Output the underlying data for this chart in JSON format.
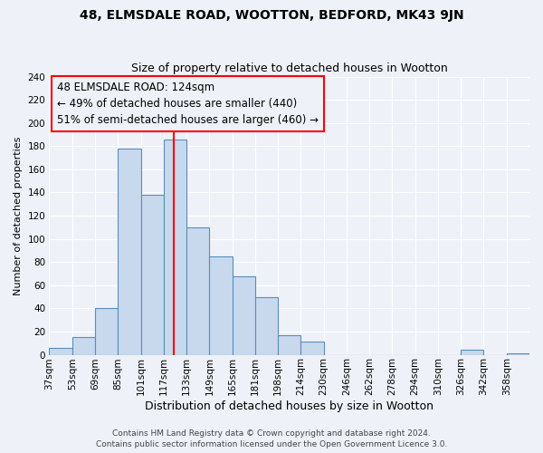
{
  "title": "48, ELMSDALE ROAD, WOOTTON, BEDFORD, MK43 9JN",
  "subtitle": "Size of property relative to detached houses in Wootton",
  "xlabel": "Distribution of detached houses by size in Wootton",
  "ylabel": "Number of detached properties",
  "bin_labels": [
    "37sqm",
    "53sqm",
    "69sqm",
    "85sqm",
    "101sqm",
    "117sqm",
    "133sqm",
    "149sqm",
    "165sqm",
    "181sqm",
    "198sqm",
    "214sqm",
    "230sqm",
    "246sqm",
    "262sqm",
    "278sqm",
    "294sqm",
    "310sqm",
    "326sqm",
    "342sqm",
    "358sqm"
  ],
  "bar_heights": [
    6,
    15,
    40,
    178,
    138,
    186,
    110,
    85,
    68,
    50,
    17,
    11,
    0,
    0,
    0,
    0,
    0,
    0,
    4,
    0,
    1
  ],
  "bar_color": "#c9d9ed",
  "bar_edge_color": "#5b8db8",
  "vline_color": "red",
  "annotation_title": "48 ELMSDALE ROAD: 124sqm",
  "annotation_line1": "← 49% of detached houses are smaller (440)",
  "annotation_line2": "51% of semi-detached houses are larger (460) →",
  "annotation_box_edge": "red",
  "ylim": [
    0,
    240
  ],
  "yticks": [
    0,
    20,
    40,
    60,
    80,
    100,
    120,
    140,
    160,
    180,
    200,
    220,
    240
  ],
  "footer1": "Contains HM Land Registry data © Crown copyright and database right 2024.",
  "footer2": "Contains public sector information licensed under the Open Government Licence 3.0.",
  "bg_color": "#eef2f8",
  "grid_color": "#ffffff",
  "title_fontsize": 10,
  "subtitle_fontsize": 9,
  "xlabel_fontsize": 9,
  "ylabel_fontsize": 8,
  "tick_fontsize": 7.5,
  "footer_fontsize": 6.5,
  "annotation_fontsize": 8.5
}
